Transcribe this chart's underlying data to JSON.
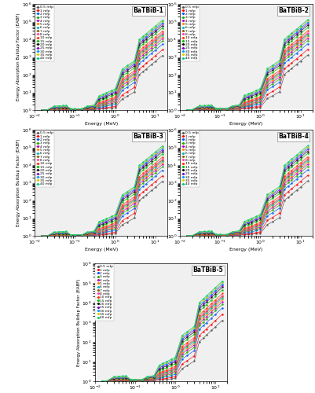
{
  "subplots": [
    "BaTBiB-1",
    "BaTBiB-2",
    "BaTBiB-3",
    "BaTBiB-4",
    "BaTBiB-5"
  ],
  "mfp_labels": [
    "0.5 mfp",
    "1 mfp",
    "2 mfp",
    "3 mfp",
    "4 mfp",
    "5 mfp",
    "6 mfp",
    "7 mfp",
    "8 mfp",
    "10 mfp",
    "15 mfp",
    "20 mfp",
    "25 mfp",
    "30 mfp",
    "35 mfp",
    "40 mfp"
  ],
  "mfp_colors": [
    "#555555",
    "#ff0000",
    "#0055ff",
    "#22aa00",
    "#bb00bb",
    "#ff8800",
    "#00bbbb",
    "#886600",
    "#ff44aa",
    "#ff3300",
    "#00bb00",
    "#111111",
    "#7700cc",
    "#0099ff",
    "#ddcc00",
    "#00cc77"
  ],
  "energy_x": [
    0.015,
    0.02,
    0.03,
    0.04,
    0.05,
    0.06,
    0.08,
    0.1,
    0.15,
    0.2,
    0.3,
    0.4,
    0.5,
    0.6,
    0.8,
    1.0,
    1.5,
    2.0,
    3.0,
    4.0,
    5.0,
    6.0,
    8.0,
    10.0,
    15.0
  ],
  "ylabel": "Energy Absorption Buildup Factor (EABF)",
  "xlabel": "Energy (MeV)",
  "bg_color": "#f0f0f0"
}
